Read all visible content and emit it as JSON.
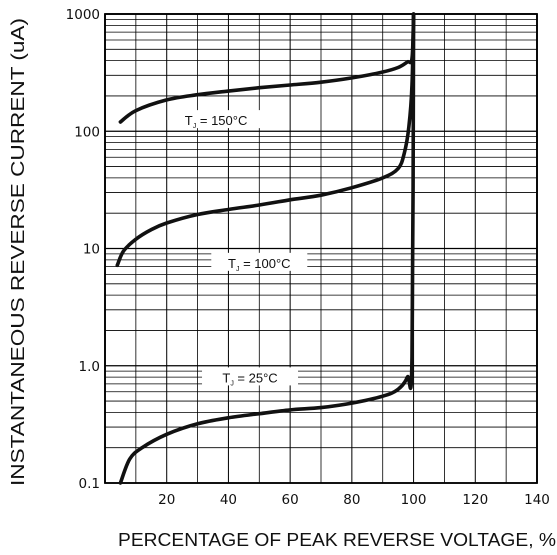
{
  "chart_data": {
    "type": "line",
    "xlabel": "PERCENTAGE OF PEAK REVERSE VOLTAGE, %",
    "ylabel": "INSTANTANEOUS REVERSE CURRENT (uA)",
    "xlim": [
      0,
      140
    ],
    "ylim": [
      0.1,
      1000
    ],
    "yscale": "log",
    "grid": true,
    "x_ticks": [
      20,
      40,
      60,
      80,
      100,
      120,
      140
    ],
    "y_ticks": [
      {
        "value": 0.1,
        "label": "0.1"
      },
      {
        "value": 1,
        "label": "1.0"
      },
      {
        "value": 10,
        "label": "10"
      },
      {
        "value": 100,
        "label": "100"
      },
      {
        "value": 1000,
        "label": "1000"
      }
    ],
    "series": [
      {
        "name": "TJ = 150°C",
        "label_parts": {
          "main": "T",
          "sub": "J",
          "rest": " = 150°C"
        },
        "x": [
          5,
          10,
          20,
          30,
          40,
          50,
          60,
          70,
          80,
          90,
          95,
          98,
          99.5,
          100
        ],
        "y": [
          120,
          150,
          185,
          205,
          220,
          235,
          248,
          262,
          285,
          320,
          350,
          390,
          420,
          1000
        ]
      },
      {
        "name": "TJ = 100°C",
        "label_parts": {
          "main": "T",
          "sub": "J",
          "rest": " = 100°C"
        },
        "x": [
          4,
          6,
          10,
          15,
          20,
          30,
          40,
          50,
          60,
          70,
          80,
          90,
          95,
          97,
          98.5,
          99.5,
          100
        ],
        "y": [
          7.2,
          9.5,
          12,
          14.5,
          16.5,
          19.5,
          21.5,
          23.5,
          26,
          28.5,
          33,
          40,
          48,
          65,
          110,
          250,
          1000
        ]
      },
      {
        "name": "TJ = 25°C",
        "label_parts": {
          "main": "T",
          "sub": "J",
          "rest": " = 25°C"
        },
        "x": [
          5,
          8,
          12,
          20,
          30,
          40,
          50,
          60,
          70,
          80,
          90,
          95,
          98,
          99.5,
          100
        ],
        "y": [
          0.1,
          0.16,
          0.2,
          0.26,
          0.32,
          0.36,
          0.39,
          0.42,
          0.44,
          0.48,
          0.55,
          0.63,
          0.8,
          1.2,
          1000
        ]
      }
    ]
  }
}
